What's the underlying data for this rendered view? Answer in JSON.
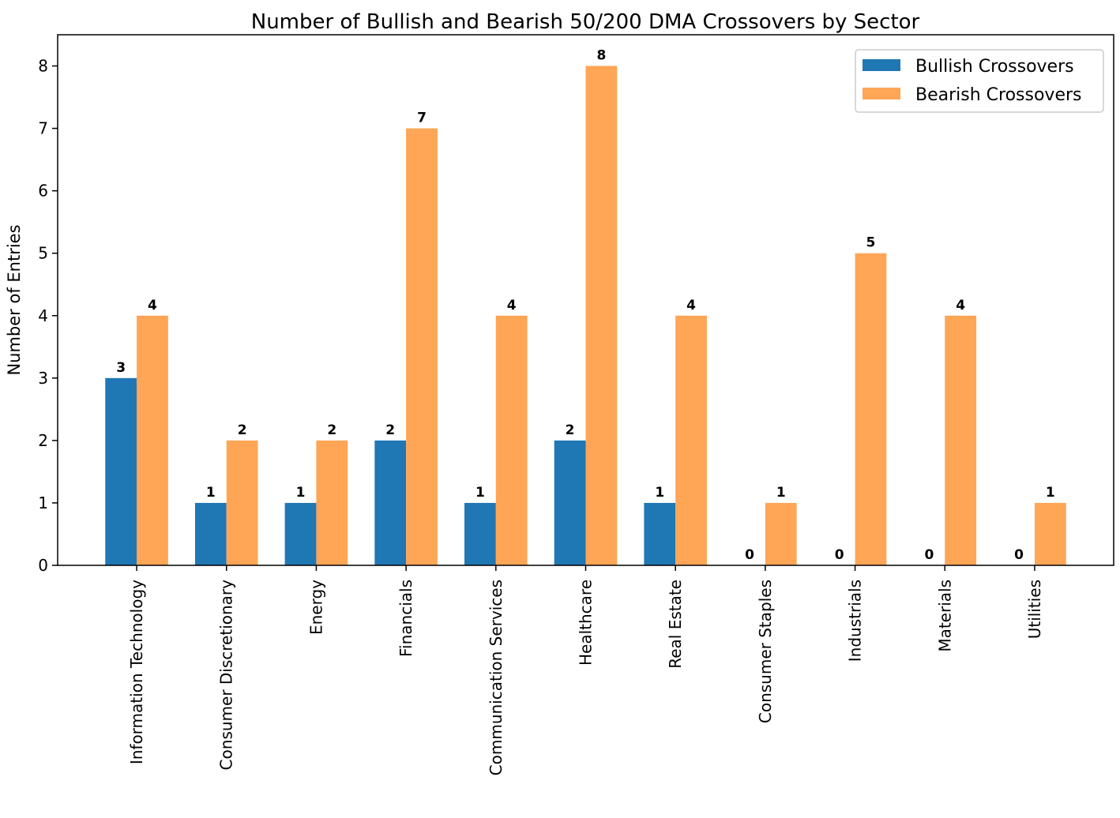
{
  "chart_data": {
    "type": "bar",
    "title": "Number of Bullish and Bearish 50/200 DMA Crossovers by Sector",
    "xlabel": "",
    "ylabel": "Number of Entries",
    "categories": [
      "Information Technology",
      "Consumer Discretionary",
      "Energy",
      "Financials",
      "Communication Services",
      "Healthcare",
      "Real Estate",
      "Consumer Staples",
      "Industrials",
      "Materials",
      "Utilities"
    ],
    "series": [
      {
        "name": "Bullish Crossovers",
        "color": "#1f77b4",
        "values": [
          3,
          1,
          1,
          2,
          1,
          2,
          1,
          0,
          0,
          0,
          0
        ]
      },
      {
        "name": "Bearish Crossovers",
        "color": "#ffa556",
        "values": [
          4,
          2,
          2,
          7,
          4,
          8,
          4,
          1,
          5,
          4,
          1
        ]
      }
    ],
    "ylim": [
      0,
      8.5
    ],
    "yticks": [
      "0",
      "1",
      "2",
      "3",
      "4",
      "5",
      "6",
      "7",
      "8"
    ],
    "grid": false,
    "legend_position": "top-right"
  }
}
